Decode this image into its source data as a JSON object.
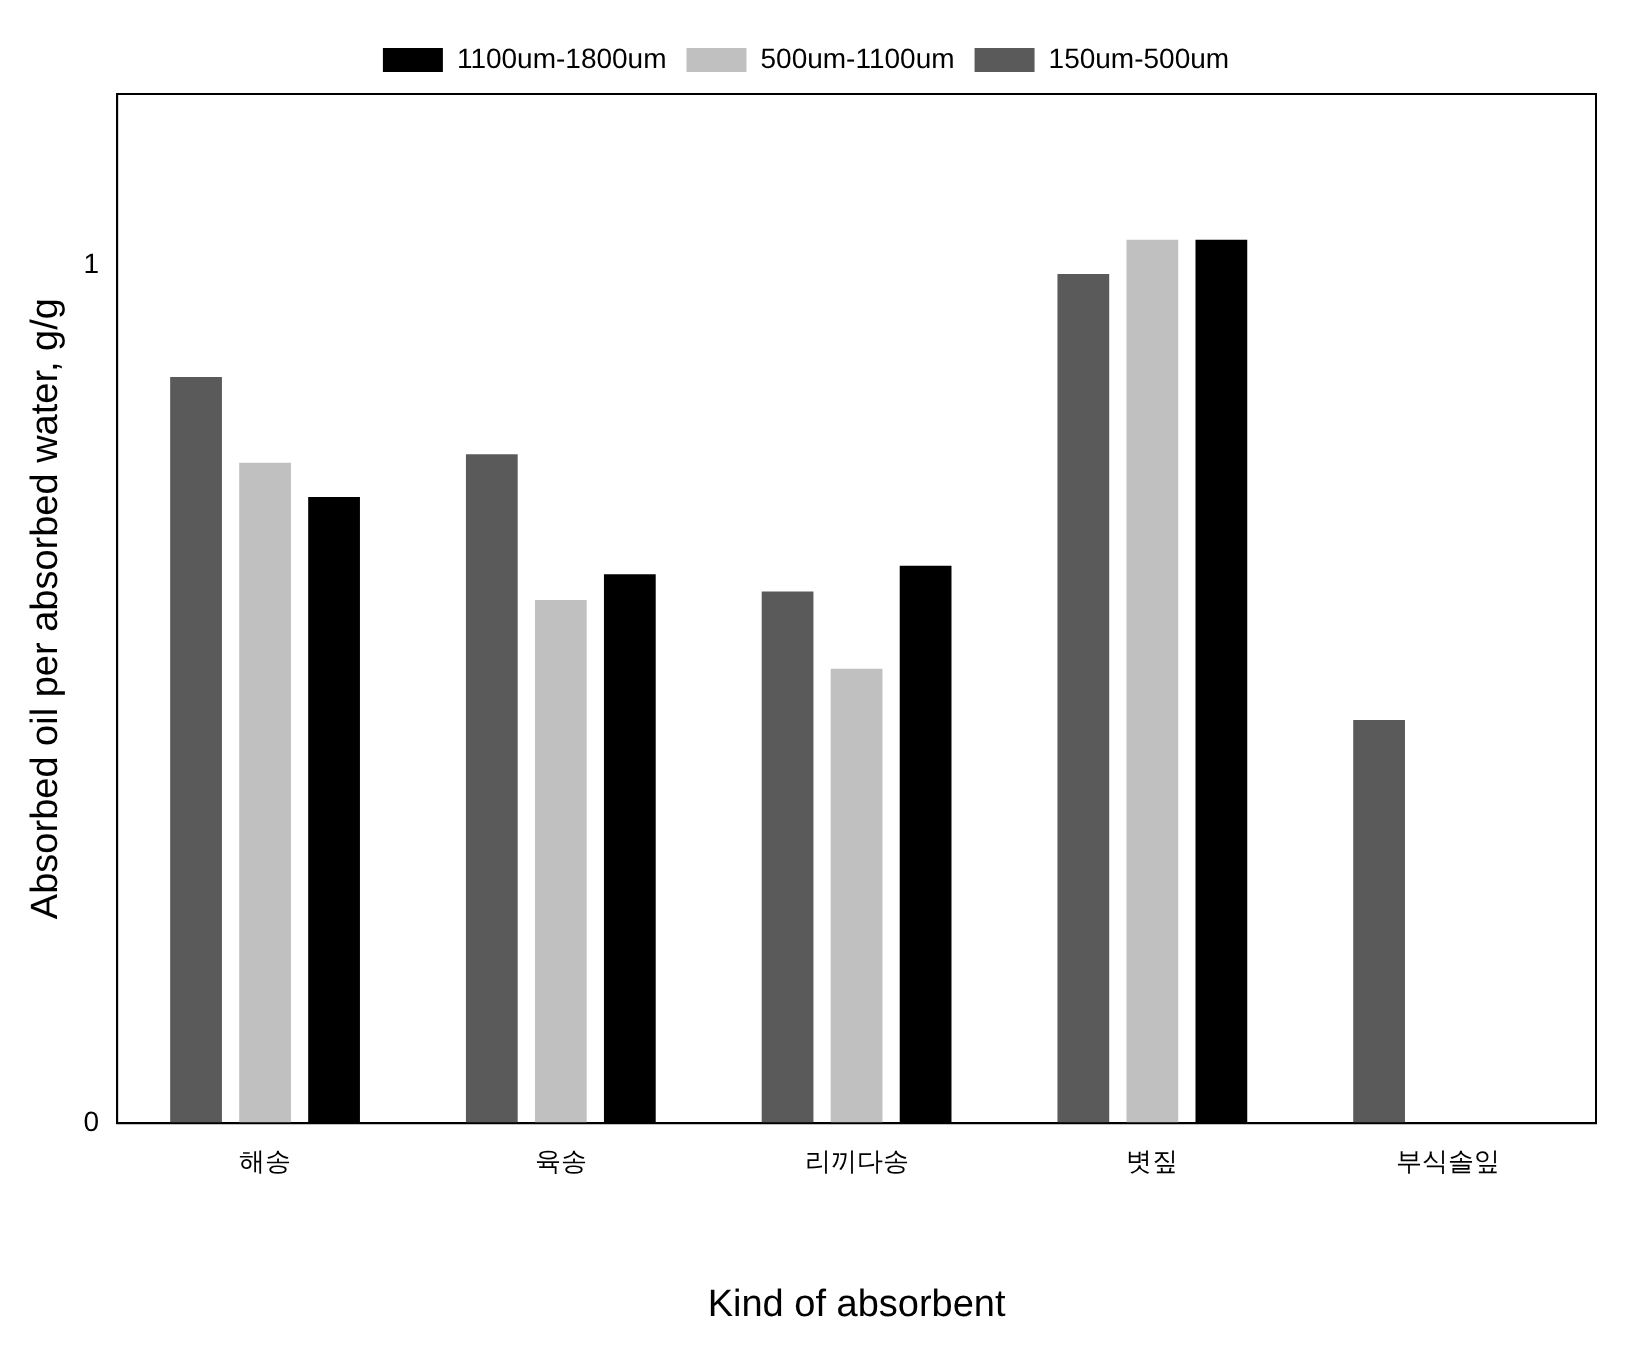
{
  "chart_data": {
    "type": "bar",
    "xlabel": "Kind of absorbent",
    "ylabel": "Absorbed oil per absorbed water, g/g",
    "categories": [
      "해송",
      "육송",
      "리끼다송",
      "볏짚",
      "부식솔잎"
    ],
    "series": [
      {
        "name": "150um-500um",
        "color": "#5a5a5a",
        "values": [
          0.87,
          0.78,
          0.62,
          0.99,
          0.47
        ]
      },
      {
        "name": "500um-1100um",
        "color": "#c0c0c0",
        "values": [
          0.77,
          0.61,
          0.53,
          1.03,
          null
        ]
      },
      {
        "name": "1100um-1800um",
        "color": "#000000",
        "values": [
          0.73,
          0.64,
          0.65,
          1.03,
          null
        ]
      }
    ],
    "ylim": [
      0,
      1.2
    ],
    "yticks": [
      0,
      1
    ],
    "grid": false,
    "legend": "top"
  }
}
